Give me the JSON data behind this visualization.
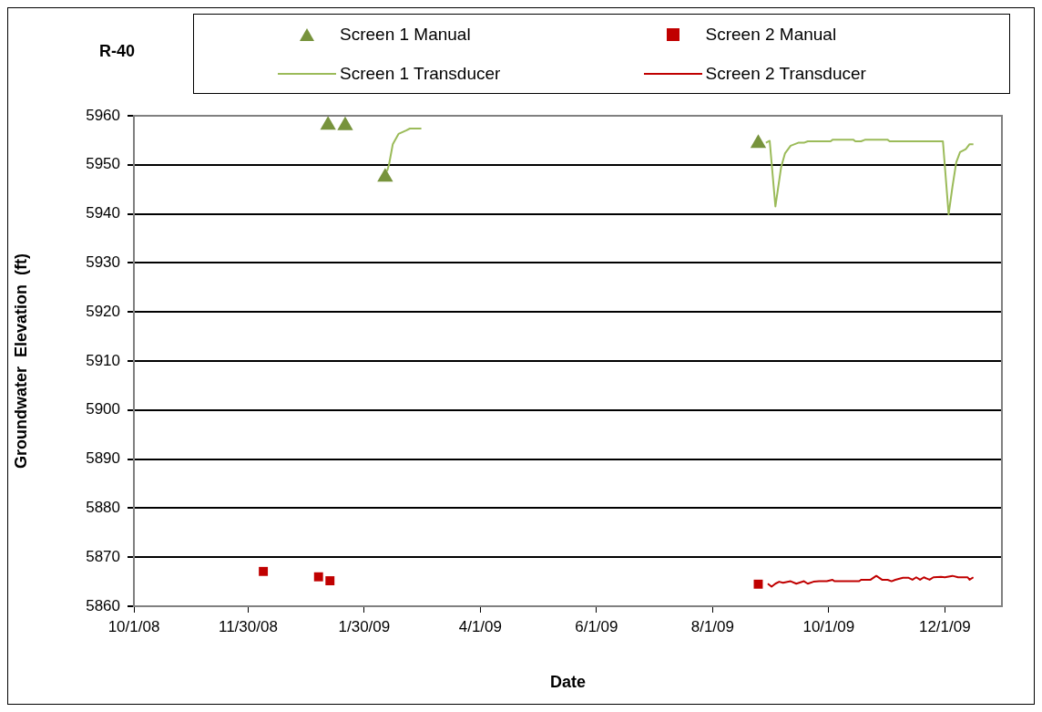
{
  "chart_data": {
    "type": "line",
    "title": "R-40",
    "xlabel": "Date",
    "ylabel": "Groundwater  Elevation  (ft)",
    "xlim": [
      "2008-10-01",
      "2009-12-31"
    ],
    "xticks": [
      {
        "value": "2008-10-01",
        "label": "10/1/08"
      },
      {
        "value": "2008-11-30",
        "label": "11/30/08"
      },
      {
        "value": "2009-01-30",
        "label": "1/30/09"
      },
      {
        "value": "2009-04-01",
        "label": "4/1/09"
      },
      {
        "value": "2009-06-01",
        "label": "6/1/09"
      },
      {
        "value": "2009-08-01",
        "label": "8/1/09"
      },
      {
        "value": "2009-10-01",
        "label": "10/1/09"
      },
      {
        "value": "2009-12-01",
        "label": "12/1/09"
      }
    ],
    "ylim": [
      5860,
      5960
    ],
    "yticks": [
      5860,
      5870,
      5880,
      5890,
      5900,
      5910,
      5920,
      5930,
      5940,
      5950,
      5960
    ],
    "grid": "y",
    "legend": "top",
    "series": [
      {
        "name": "Screen 1 Manual",
        "type": "scatter",
        "marker": "triangle",
        "color": "#77933c",
        "x": [
          "2009-01-11",
          "2009-01-20",
          "2009-02-10",
          "2009-08-25"
        ],
        "values": [
          5958.1,
          5958,
          5947.5,
          5954.4
        ]
      },
      {
        "name": "Screen 2 Manual",
        "type": "scatter",
        "marker": "square",
        "color": "#c00000",
        "x": [
          "2008-12-08",
          "2009-01-06",
          "2009-01-12",
          "2009-08-25"
        ],
        "values": [
          5867.1,
          5866,
          5865.2,
          5864.5
        ]
      },
      {
        "name": "Screen 1 Transducer",
        "type": "line",
        "marker": "none",
        "line_style": "solid",
        "color": "#9bbb59",
        "x": [
          "2009-02-11",
          "2009-02-12",
          "2009-02-14",
          "2009-02-17",
          "2009-02-21",
          "2009-02-23",
          "2009-03-01",
          null,
          "2009-08-29",
          "2009-08-31",
          "2009-09-03",
          "2009-09-06",
          "2009-09-08",
          "2009-09-11",
          "2009-09-15",
          "2009-09-18",
          "2009-09-20",
          "2009-10-02",
          "2009-10-03",
          "2009-10-14",
          "2009-10-15",
          "2009-10-18",
          "2009-10-20",
          "2009-11-01",
          "2009-11-02",
          "2009-11-30",
          "2009-12-03",
          "2009-12-05",
          "2009-12-07",
          "2009-12-09",
          "2009-12-12",
          "2009-12-14",
          "2009-12-16"
        ],
        "values": [
          5948.7,
          5950,
          5954.2,
          5956.3,
          5957,
          5957.4,
          5957.4,
          null,
          5954.5,
          5954.9,
          5941.5,
          5949.5,
          5952.3,
          5953.9,
          5954.5,
          5954.5,
          5954.8,
          5954.8,
          5955.1,
          5955.1,
          5954.8,
          5954.8,
          5955.1,
          5955.1,
          5954.8,
          5954.8,
          5939.9,
          5945.5,
          5950.5,
          5952.6,
          5953.2,
          5954.2,
          5954.2
        ]
      },
      {
        "name": "Screen 2 Transducer",
        "type": "line",
        "marker": "none",
        "line_style": "solid",
        "color": "#c00000",
        "x": [
          "2009-08-30",
          "2009-09-01",
          "2009-09-03",
          "2009-09-05",
          "2009-09-07",
          "2009-09-11",
          "2009-09-14",
          "2009-09-18",
          "2009-09-20",
          "2009-09-23",
          "2009-09-26",
          "2009-09-30",
          "2009-10-03",
          "2009-10-04",
          "2009-10-17",
          "2009-10-18",
          "2009-10-23",
          "2009-10-26",
          "2009-10-29",
          "2009-11-01",
          "2009-11-03",
          "2009-11-05",
          "2009-11-09",
          "2009-11-12",
          "2009-11-14",
          "2009-11-16",
          "2009-11-18",
          "2009-11-20",
          "2009-11-23",
          "2009-11-25",
          "2009-11-29",
          "2009-12-01",
          "2009-12-05",
          "2009-12-08",
          "2009-12-13",
          "2009-12-14",
          "2009-12-16"
        ],
        "values": [
          5864.6,
          5864,
          5864.6,
          5865,
          5864.8,
          5865.1,
          5864.6,
          5865.1,
          5864.6,
          5865,
          5865.1,
          5865.1,
          5865.4,
          5865.1,
          5865.1,
          5865.4,
          5865.4,
          5866.2,
          5865.4,
          5865.4,
          5865.1,
          5865.4,
          5865.8,
          5865.8,
          5865.4,
          5865.9,
          5865.4,
          5865.9,
          5865.4,
          5865.9,
          5866,
          5865.9,
          5866.2,
          5865.9,
          5865.9,
          5865.4,
          5865.9
        ]
      }
    ]
  }
}
